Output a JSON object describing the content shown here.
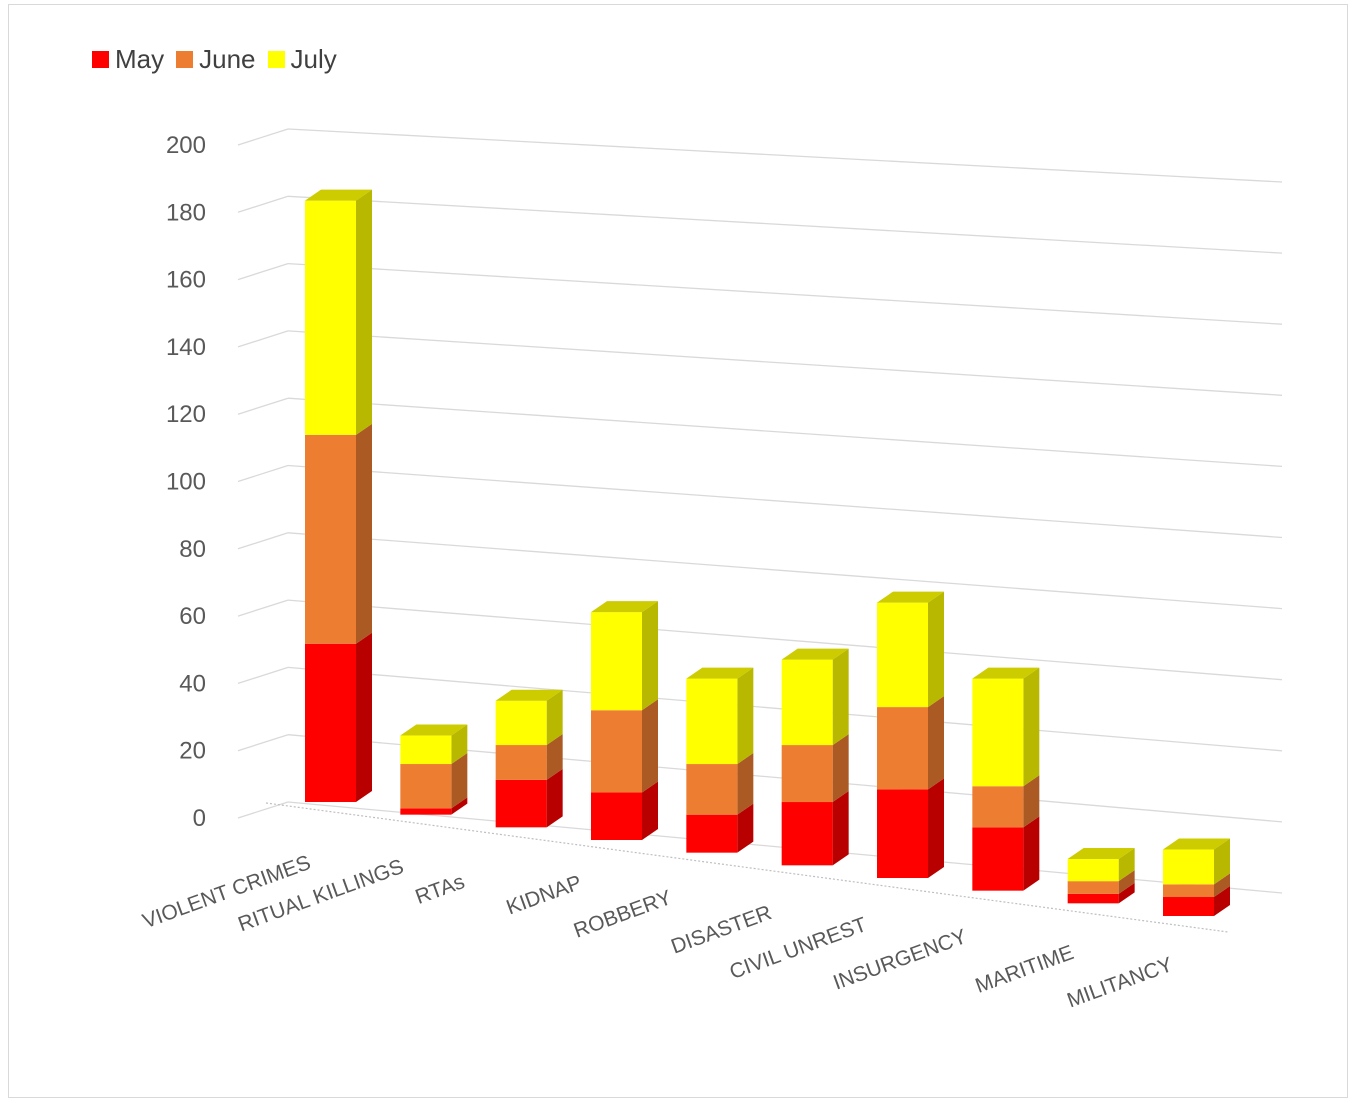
{
  "chart_data": {
    "type": "bar",
    "stacked": true,
    "three_d": true,
    "categories": [
      "VIOLENT CRIMES",
      "RITUAL KILLINGS",
      "RTAs",
      "KIDNAP",
      "ROBBERY",
      "DISASTER",
      "CIVIL UNREST",
      "INSURGENCY",
      "MARITIME",
      "MILITANCY"
    ],
    "series": [
      {
        "name": "May",
        "color": "#ff0000",
        "values": [
          50,
          2,
          15,
          15,
          12,
          20,
          28,
          20,
          3,
          6
        ]
      },
      {
        "name": "June",
        "color": "#ed7d31",
        "values": [
          66,
          14,
          11,
          26,
          16,
          18,
          26,
          13,
          4,
          4
        ]
      },
      {
        "name": "July",
        "color": "#ffff00",
        "values": [
          74,
          9,
          14,
          31,
          27,
          27,
          33,
          34,
          7,
          11
        ]
      }
    ],
    "y_ticks": [
      "0",
      "20",
      "40",
      "60",
      "80",
      "100",
      "120",
      "140",
      "160",
      "180",
      "200"
    ],
    "ylim": [
      0,
      200
    ],
    "grid": true,
    "legend_position": "top-left"
  }
}
